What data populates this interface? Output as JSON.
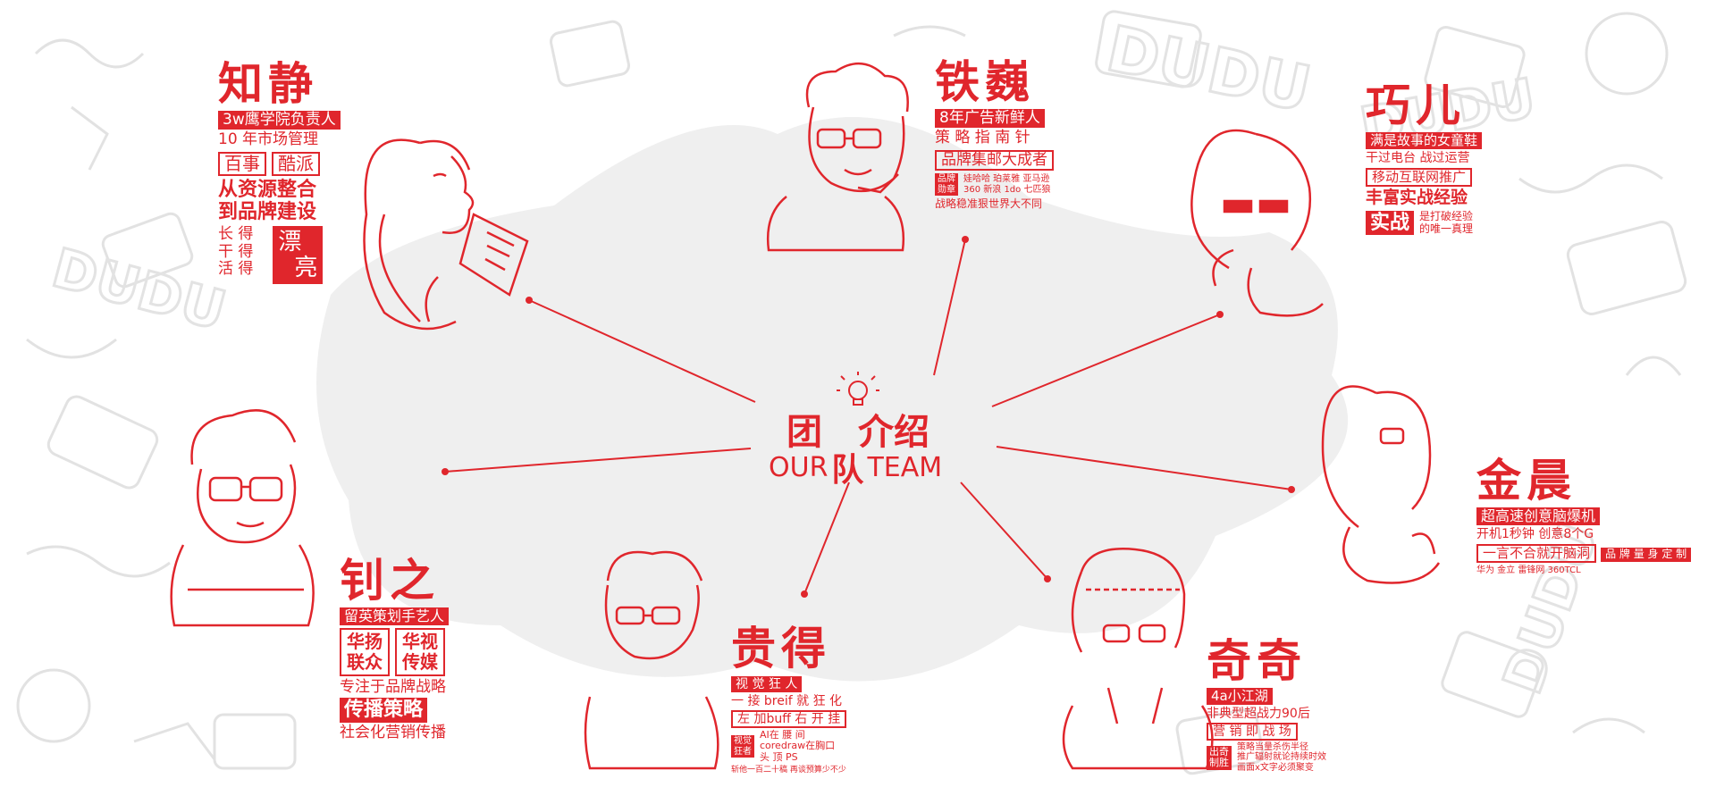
{
  "center": {
    "title_red_1": "团",
    "title_red_2": "队",
    "title_line": "介绍",
    "our": "OUR",
    "team": "TEAM"
  },
  "members": {
    "zhijing": {
      "name": "知静",
      "line1": "3w鹰学院负责人",
      "line2": "10 年市场管理",
      "tag1": "百事",
      "tag2": "酷派",
      "line3": "从资源整合",
      "line4": "到品牌建设",
      "v1": "长 得",
      "v2": "干 得",
      "v3": "活 得",
      "big1": "漂",
      "big2": "亮"
    },
    "tiewei": {
      "name": "铁巍",
      "line1": "8年广告新鲜人",
      "line2": "策 略 指 南 针",
      "line3": "品牌集邮大成者",
      "label_a": "品牌",
      "label_b": "勋章",
      "row1": "娃哈哈  珀莱雅  亚马逊",
      "row2": "360  新浪  1do  七匹狼",
      "line4": "战略稳准狠世界大不同"
    },
    "qiaoer": {
      "name": "巧儿",
      "line1": "满是故事的女童鞋",
      "line2": "干过电台  战过运营",
      "line3": "移动互联网推广",
      "line4": "丰富实战经验",
      "big": "实战",
      "side1": "是打破经验",
      "side2": "的唯一真理"
    },
    "jinchen": {
      "name": "金晨",
      "line1": "超高速创意脑爆机",
      "line2": "开机1秒钟  创意8个G",
      "line3": "一言不合就开脑洞",
      "line4": "品 牌 量 身 定 制",
      "line5": "华为  金立  雷锋网  360TCL"
    },
    "zhaozhi": {
      "name": "钊之",
      "line1": "留英策划手艺人",
      "tag1a": "华扬",
      "tag1b": "联众",
      "tag2a": "华视",
      "tag2b": "传媒",
      "line2": "专注于品牌战略",
      "line3": "传播策略",
      "line4": "社会化营销传播"
    },
    "guide": {
      "name": "贵得",
      "line1": "视 觉 狂 人",
      "line2": "一 接 breif 就 狂 化",
      "line3": "左 加buff 右 开 挂",
      "label_a": "视觉",
      "label_b": "狂者",
      "row1": "AI在  腰  间",
      "row2": "coredraw在胸口",
      "row3": "头  顶  PS",
      "line4": "斩他一百二十稿  再谈预算少不少"
    },
    "qiqi": {
      "name": "奇奇",
      "line1": "4a小江湖",
      "line2": "非典型超战力90后",
      "line3": "营 销 即 战 场",
      "label_a": "出奇",
      "label_b": "制胜",
      "row1": "策略当量杀伤半径",
      "row2": "推广辐射就论持续时效",
      "row3": "画面x文字必须聚变"
    }
  },
  "colors": {
    "accent": "#e0262c",
    "bg_shape": "#efefef",
    "doodle": "#dcdcdc"
  }
}
